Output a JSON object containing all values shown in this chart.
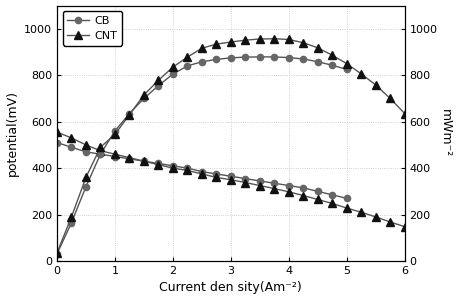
{
  "title": "",
  "xlabel": "Current den sity(Am⁻²)",
  "ylabel_left": "potential(mV)",
  "ylabel_right": "mWm⁻²",
  "xlim": [
    0,
    6
  ],
  "ylim_left": [
    0,
    1100
  ],
  "ylim_right": [
    0,
    1100
  ],
  "yticks_left": [
    0,
    200,
    400,
    600,
    800,
    1000
  ],
  "yticks_right": [
    0,
    200,
    400,
    600,
    800,
    1000
  ],
  "xticks": [
    0,
    1,
    2,
    3,
    4,
    5,
    6
  ],
  "CB_voltage_x": [
    0.0,
    0.25,
    0.5,
    0.75,
    1.0,
    1.25,
    1.5,
    1.75,
    2.0,
    2.25,
    2.5,
    2.75,
    3.0,
    3.25,
    3.5,
    3.75,
    4.0,
    4.25,
    4.5,
    4.75,
    5.0
  ],
  "CB_voltage_y": [
    510,
    490,
    470,
    460,
    450,
    440,
    430,
    420,
    410,
    400,
    385,
    375,
    365,
    355,
    345,
    335,
    325,
    315,
    300,
    285,
    270
  ],
  "CNT_voltage_x": [
    0.0,
    0.25,
    0.5,
    0.75,
    1.0,
    1.25,
    1.5,
    1.75,
    2.0,
    2.25,
    2.5,
    2.75,
    3.0,
    3.25,
    3.5,
    3.75,
    4.0,
    4.25,
    4.5,
    4.75,
    5.0,
    5.25,
    5.5,
    5.75,
    6.0
  ],
  "CNT_voltage_y": [
    555,
    530,
    500,
    475,
    460,
    445,
    430,
    415,
    400,
    390,
    375,
    360,
    350,
    338,
    325,
    312,
    298,
    282,
    265,
    248,
    228,
    210,
    190,
    168,
    148
  ],
  "CB_power_x": [
    0.0,
    0.25,
    0.5,
    0.75,
    1.0,
    1.25,
    1.5,
    1.75,
    2.0,
    2.25,
    2.5,
    2.75,
    3.0,
    3.25,
    3.5,
    3.75,
    4.0,
    4.25,
    4.5,
    4.75,
    5.0
  ],
  "CB_power_y": [
    30,
    165,
    320,
    460,
    560,
    635,
    700,
    755,
    805,
    840,
    858,
    868,
    875,
    878,
    879,
    879,
    876,
    870,
    858,
    843,
    825
  ],
  "CNT_power_x": [
    0.0,
    0.25,
    0.5,
    0.75,
    1.0,
    1.25,
    1.5,
    1.75,
    2.0,
    2.25,
    2.5,
    2.75,
    3.0,
    3.25,
    3.5,
    3.75,
    4.0,
    4.25,
    4.5,
    4.75,
    5.0,
    5.25,
    5.5,
    5.75,
    6.0
  ],
  "CNT_power_y": [
    35,
    190,
    360,
    490,
    545,
    630,
    715,
    778,
    835,
    878,
    916,
    934,
    943,
    951,
    956,
    957,
    954,
    940,
    918,
    886,
    850,
    806,
    758,
    700,
    635
  ],
  "line_color": "#555555",
  "marker_color_CB": "#666666",
  "marker_color_CNT": "#111111",
  "background_color": "#ffffff",
  "legend_CB": "CB",
  "legend_CNT": "CNT",
  "grid_color": "#bbbbbb",
  "markersize_circle": 4.5,
  "markersize_triangle": 6.0,
  "linewidth": 1.0
}
